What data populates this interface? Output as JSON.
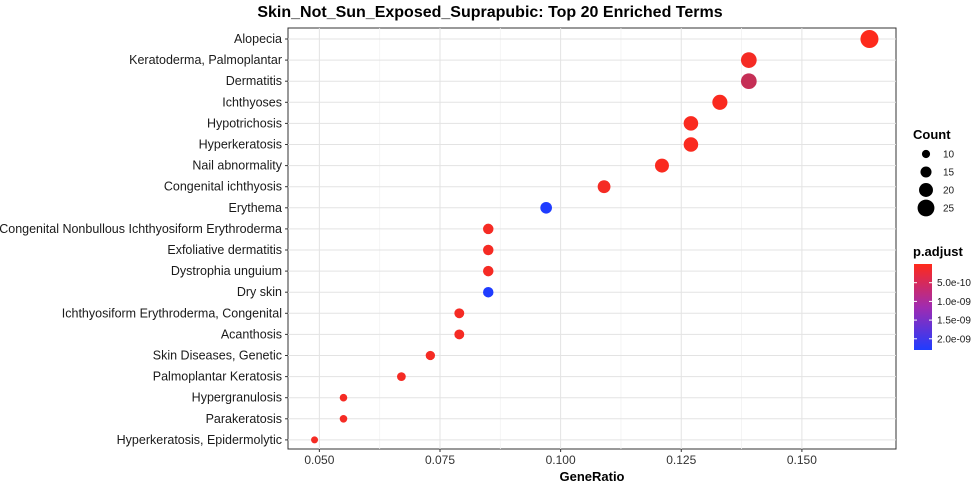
{
  "chart_data": {
    "type": "scatter",
    "title": "Skin_Not_Sun_Exposed_Suprapubic: Top 20 Enriched Terms",
    "xlabel": "GeneRatio",
    "ylabel": "",
    "xlim": [
      0.0435,
      0.1695
    ],
    "xticks": [
      0.05,
      0.075,
      0.1,
      0.125,
      0.15
    ],
    "xtick_labels": [
      "0.050",
      "0.075",
      "0.100",
      "0.125",
      "0.150"
    ],
    "grid": true,
    "terms": [
      "Alopecia",
      "Keratoderma, Palmoplantar",
      "Dermatitis",
      "Ichthyoses",
      "Hypotrichosis",
      "Hyperkeratosis",
      "Nail abnormality",
      "Congenital ichthyosis",
      "Erythema",
      "Congenital Nonbullous Ichthyosiform Erythroderma",
      "Exfoliative dermatitis",
      "Dystrophia unguium",
      "Dry skin",
      "Ichthyosiform Erythroderma, Congenital",
      "Acanthosis",
      "Skin Diseases, Genetic",
      "Palmoplantar Keratosis",
      "Hypergranulosis",
      "Parakeratosis",
      "Hyperkeratosis, Epidermolytic"
    ],
    "gene_ratio": [
      0.164,
      0.139,
      0.139,
      0.133,
      0.127,
      0.127,
      0.121,
      0.109,
      0.097,
      0.085,
      0.085,
      0.085,
      0.085,
      0.079,
      0.079,
      0.073,
      0.067,
      0.055,
      0.055,
      0.049
    ],
    "count": [
      27,
      23,
      23,
      22,
      21,
      21,
      20,
      18,
      16,
      14,
      14,
      14,
      14,
      13,
      13,
      12,
      11,
      9,
      9,
      8
    ],
    "p_adjust": [
      2e-11,
      1e-10,
      6e-10,
      5e-11,
      5e-11,
      5e-11,
      5e-11,
      1e-10,
      2.3e-09,
      1e-10,
      1e-10,
      1e-10,
      2.3e-09,
      1e-10,
      1e-10,
      1e-10,
      1e-10,
      1e-10,
      1e-10,
      1e-10
    ],
    "legend_size": {
      "title": "Count",
      "values": [
        10,
        15,
        20,
        25
      ],
      "labels": [
        "10",
        "15",
        "20",
        "25"
      ]
    },
    "legend_color": {
      "title": "p.adjust",
      "range": [
        0,
        2.3e-09
      ],
      "ticks": [
        5e-10,
        1e-09,
        1.5e-09,
        2e-09
      ],
      "tick_labels": [
        "5.0e-10",
        "1.0e-09",
        "1.5e-09",
        "2.0e-09"
      ],
      "low_color": "#ff2a1a",
      "high_color": "#1f3cff"
    },
    "legend_position": "right"
  }
}
